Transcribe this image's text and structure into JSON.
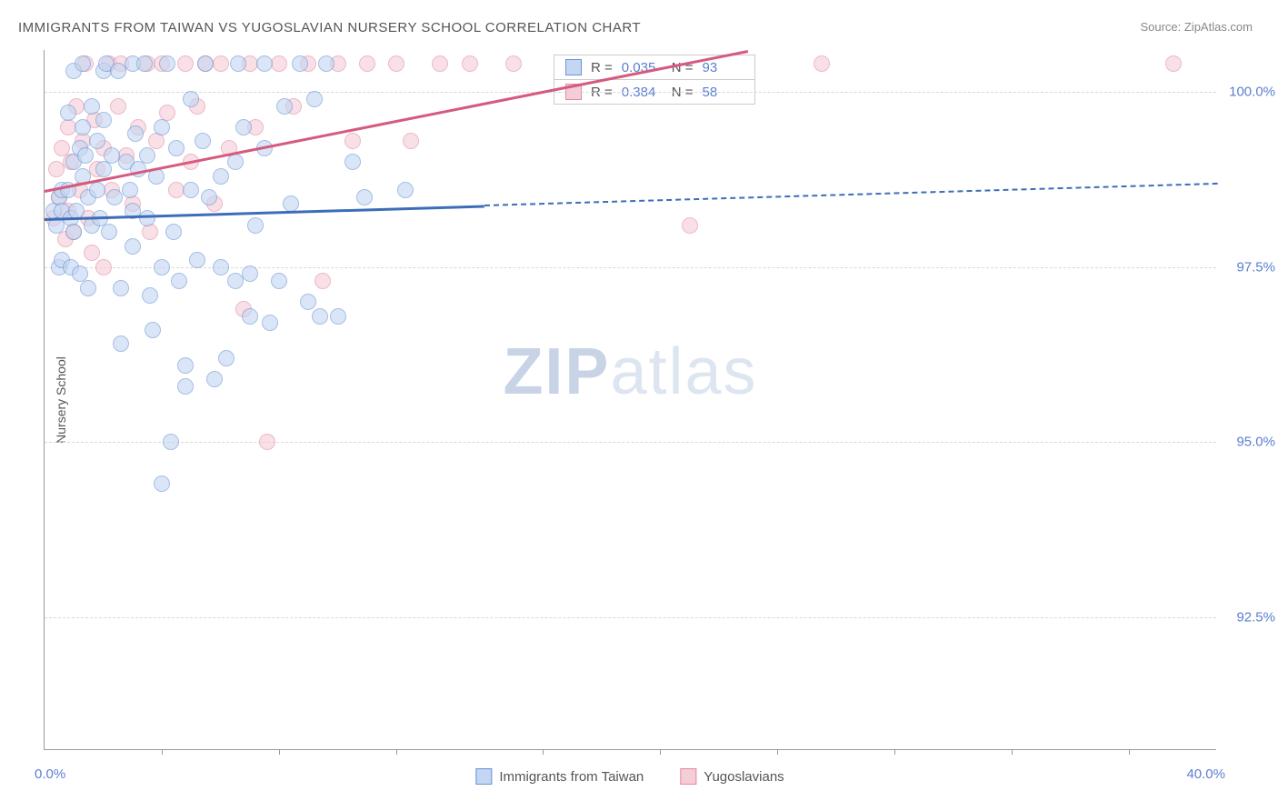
{
  "title": "IMMIGRANTS FROM TAIWAN VS YUGOSLAVIAN NURSERY SCHOOL CORRELATION CHART",
  "source_label": "Source: ",
  "source_value": "ZipAtlas.com",
  "watermark_bold": "ZIP",
  "watermark_light": "atlas",
  "chart": {
    "type": "scatter",
    "ylabel": "Nursery School",
    "xlim": [
      0,
      40
    ],
    "ylim": [
      90.6,
      100.6
    ],
    "background_color": "#ffffff",
    "grid_color": "#d8d8d8",
    "yticks": [
      {
        "v": 100.0,
        "label": "100.0%"
      },
      {
        "v": 97.5,
        "label": "97.5%"
      },
      {
        "v": 95.0,
        "label": "95.0%"
      },
      {
        "v": 92.5,
        "label": "92.5%"
      }
    ],
    "xticks_minor": [
      4,
      8,
      12,
      17,
      21,
      25,
      29,
      33,
      37
    ],
    "xtick_labels": {
      "left": "0.0%",
      "right": "40.0%"
    },
    "marker_radius": 9,
    "series": [
      {
        "name": "Immigrants from Taiwan",
        "color_fill": "#c3d6f2",
        "color_stroke": "#6a94d4",
        "swatch_fill": "#c3d6f2",
        "swatch_border": "#6a94d4",
        "R": "0.035",
        "N": "93",
        "trend": {
          "x1": 0,
          "y1": 98.2,
          "x2": 40,
          "y2": 98.7,
          "solid_until_x": 15,
          "color": "#3d6db8"
        },
        "points": [
          [
            0.3,
            98.3
          ],
          [
            0.4,
            98.1
          ],
          [
            0.5,
            98.5
          ],
          [
            0.5,
            97.5
          ],
          [
            0.6,
            97.6
          ],
          [
            0.6,
            98.6
          ],
          [
            0.6,
            98.3
          ],
          [
            0.8,
            99.7
          ],
          [
            0.8,
            98.6
          ],
          [
            0.9,
            97.5
          ],
          [
            0.9,
            98.2
          ],
          [
            1.0,
            100.3
          ],
          [
            1.0,
            99.0
          ],
          [
            1.0,
            98.0
          ],
          [
            1.1,
            98.3
          ],
          [
            1.2,
            99.2
          ],
          [
            1.2,
            97.4
          ],
          [
            1.3,
            100.4
          ],
          [
            1.3,
            99.5
          ],
          [
            1.3,
            98.8
          ],
          [
            1.4,
            99.1
          ],
          [
            1.5,
            97.2
          ],
          [
            1.5,
            98.5
          ],
          [
            1.6,
            99.8
          ],
          [
            1.6,
            98.1
          ],
          [
            1.8,
            98.6
          ],
          [
            1.8,
            99.3
          ],
          [
            1.9,
            98.2
          ],
          [
            2.0,
            100.3
          ],
          [
            2.0,
            98.9
          ],
          [
            2.0,
            99.6
          ],
          [
            2.1,
            100.4
          ],
          [
            2.2,
            98.0
          ],
          [
            2.3,
            99.1
          ],
          [
            2.4,
            98.5
          ],
          [
            2.5,
            100.3
          ],
          [
            2.6,
            97.2
          ],
          [
            2.6,
            96.4
          ],
          [
            2.8,
            99.0
          ],
          [
            2.9,
            98.6
          ],
          [
            3.0,
            100.4
          ],
          [
            3.0,
            98.3
          ],
          [
            3.0,
            97.8
          ],
          [
            3.1,
            99.4
          ],
          [
            3.2,
            98.9
          ],
          [
            3.4,
            100.4
          ],
          [
            3.5,
            99.1
          ],
          [
            3.5,
            98.2
          ],
          [
            3.6,
            97.1
          ],
          [
            3.7,
            96.6
          ],
          [
            3.8,
            98.8
          ],
          [
            4.0,
            99.5
          ],
          [
            4.0,
            97.5
          ],
          [
            4.0,
            94.4
          ],
          [
            4.2,
            100.4
          ],
          [
            4.3,
            95.0
          ],
          [
            4.4,
            98.0
          ],
          [
            4.5,
            99.2
          ],
          [
            4.6,
            97.3
          ],
          [
            4.8,
            96.1
          ],
          [
            4.8,
            95.8
          ],
          [
            5.0,
            98.6
          ],
          [
            5.0,
            99.9
          ],
          [
            5.2,
            97.6
          ],
          [
            5.4,
            99.3
          ],
          [
            5.5,
            100.4
          ],
          [
            5.6,
            98.5
          ],
          [
            5.8,
            95.9
          ],
          [
            6.0,
            97.5
          ],
          [
            6.0,
            98.8
          ],
          [
            6.2,
            96.2
          ],
          [
            6.5,
            99.0
          ],
          [
            6.5,
            97.3
          ],
          [
            6.6,
            100.4
          ],
          [
            6.8,
            99.5
          ],
          [
            7.0,
            97.4
          ],
          [
            7.0,
            96.8
          ],
          [
            7.2,
            98.1
          ],
          [
            7.5,
            100.4
          ],
          [
            7.5,
            99.2
          ],
          [
            7.7,
            96.7
          ],
          [
            8.0,
            97.3
          ],
          [
            8.2,
            99.8
          ],
          [
            8.4,
            98.4
          ],
          [
            8.7,
            100.4
          ],
          [
            9.0,
            97.0
          ],
          [
            9.2,
            99.9
          ],
          [
            9.4,
            96.8
          ],
          [
            9.6,
            100.4
          ],
          [
            10.0,
            96.8
          ],
          [
            10.5,
            99.0
          ],
          [
            10.9,
            98.5
          ],
          [
            12.3,
            98.6
          ]
        ]
      },
      {
        "name": "Yugoslavians",
        "color_fill": "#f5cdd7",
        "color_stroke": "#e38aa0",
        "swatch_fill": "#f5cdd7",
        "swatch_border": "#e38aa0",
        "R": "0.384",
        "N": "58",
        "trend": {
          "x1": 0,
          "y1": 98.6,
          "x2": 24,
          "y2": 100.6,
          "solid_until_x": 24,
          "color": "#d65a7e"
        },
        "points": [
          [
            0.3,
            98.2
          ],
          [
            0.4,
            98.9
          ],
          [
            0.5,
            98.5
          ],
          [
            0.6,
            99.2
          ],
          [
            0.7,
            97.9
          ],
          [
            0.8,
            99.5
          ],
          [
            0.8,
            98.3
          ],
          [
            0.9,
            99.0
          ],
          [
            1.0,
            98.0
          ],
          [
            1.1,
            99.8
          ],
          [
            1.2,
            98.6
          ],
          [
            1.3,
            99.3
          ],
          [
            1.4,
            100.4
          ],
          [
            1.5,
            98.2
          ],
          [
            1.6,
            97.7
          ],
          [
            1.7,
            99.6
          ],
          [
            1.8,
            98.9
          ],
          [
            2.0,
            99.2
          ],
          [
            2.0,
            97.5
          ],
          [
            2.2,
            100.4
          ],
          [
            2.3,
            98.6
          ],
          [
            2.5,
            99.8
          ],
          [
            2.6,
            100.4
          ],
          [
            2.8,
            99.1
          ],
          [
            3.0,
            98.4
          ],
          [
            3.2,
            99.5
          ],
          [
            3.5,
            100.4
          ],
          [
            3.6,
            98.0
          ],
          [
            3.8,
            99.3
          ],
          [
            4.0,
            100.4
          ],
          [
            4.2,
            99.7
          ],
          [
            4.5,
            98.6
          ],
          [
            4.8,
            100.4
          ],
          [
            5.0,
            99.0
          ],
          [
            5.2,
            99.8
          ],
          [
            5.5,
            100.4
          ],
          [
            5.8,
            98.4
          ],
          [
            6.0,
            100.4
          ],
          [
            6.3,
            99.2
          ],
          [
            6.8,
            96.9
          ],
          [
            7.0,
            100.4
          ],
          [
            7.2,
            99.5
          ],
          [
            7.6,
            95.0
          ],
          [
            8.0,
            100.4
          ],
          [
            8.5,
            99.8
          ],
          [
            9.0,
            100.4
          ],
          [
            9.5,
            97.3
          ],
          [
            10.0,
            100.4
          ],
          [
            10.5,
            99.3
          ],
          [
            11.0,
            100.4
          ],
          [
            12.0,
            100.4
          ],
          [
            12.5,
            99.3
          ],
          [
            13.5,
            100.4
          ],
          [
            14.5,
            100.4
          ],
          [
            16.0,
            100.4
          ],
          [
            22.0,
            98.1
          ],
          [
            26.5,
            100.4
          ],
          [
            38.5,
            100.4
          ]
        ]
      }
    ]
  }
}
